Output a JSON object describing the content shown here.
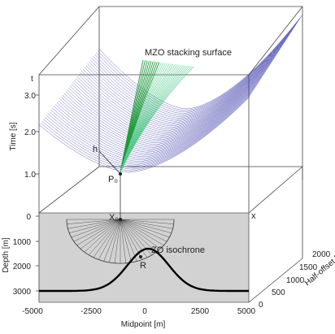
{
  "surface": {
    "label": "MZO stacking surface",
    "line_color": "#3a3aa8",
    "highlight_color": "#55c88a",
    "highlight_color_dark": "#1f9a3a"
  },
  "points": {
    "p0": "P₀",
    "x0": "X₀",
    "r": "R",
    "h": "h",
    "t": "t",
    "x": "x"
  },
  "isochrone": {
    "label": "ZO isochrone"
  },
  "reflector": {
    "color": "#000000"
  },
  "depth_panel": {
    "fill": "#d2d2d2"
  },
  "axes": {
    "time": {
      "label": "Time [s]",
      "ticks": [
        "1.0",
        "2.0",
        "3.0"
      ]
    },
    "depth": {
      "label": "Depth [m]",
      "ticks": [
        "0",
        "1000",
        "2000",
        "3000"
      ]
    },
    "midpoint": {
      "label": "Midpoint [m]",
      "ticks": [
        "-5000",
        "-2500",
        "0",
        "2500",
        "5000"
      ]
    },
    "half_offset": {
      "label": "Half-offset [m]",
      "ticks": [
        "2000",
        "1500",
        "1000",
        "500",
        "0"
      ]
    }
  }
}
